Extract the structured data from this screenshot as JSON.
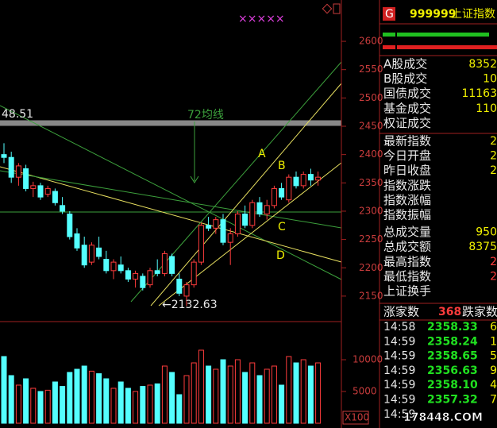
{
  "chart_data": [
    {
      "type": "candlestick",
      "up_color": "#ff3c3c",
      "down_color": "#54ffff",
      "open": [
        2400,
        2395,
        2360,
        2375,
        2340,
        2345,
        2330,
        2335,
        2310,
        2295,
        2260,
        2240,
        2210,
        2235,
        2215,
        2195,
        2205,
        2195,
        2180,
        2185,
        2170,
        2195,
        2190,
        2220,
        2180,
        2150,
        2170,
        2210,
        2275,
        2270,
        2285,
        2245,
        2260,
        2295,
        2275,
        2315,
        2295,
        2310,
        2340,
        2320,
        2360,
        2345,
        2365,
        2355
      ],
      "high": [
        2420,
        2405,
        2385,
        2382,
        2352,
        2350,
        2345,
        2340,
        2325,
        2300,
        2270,
        2255,
        2245,
        2255,
        2230,
        2215,
        2220,
        2200,
        2195,
        2190,
        2200,
        2215,
        2230,
        2225,
        2190,
        2175,
        2215,
        2280,
        2290,
        2290,
        2295,
        2270,
        2300,
        2310,
        2320,
        2325,
        2320,
        2345,
        2350,
        2365,
        2370,
        2370,
        2375,
        2370
      ],
      "low": [
        2385,
        2350,
        2345,
        2335,
        2325,
        2320,
        2325,
        2310,
        2295,
        2250,
        2230,
        2200,
        2205,
        2215,
        2190,
        2180,
        2190,
        2175,
        2165,
        2160,
        2165,
        2185,
        2185,
        2185,
        2150,
        2132.63,
        2165,
        2205,
        2265,
        2260,
        2240,
        2205,
        2255,
        2270,
        2270,
        2290,
        2285,
        2305,
        2320,
        2315,
        2340,
        2340,
        2345,
        2345
      ],
      "close": [
        2395,
        2360,
        2380,
        2340,
        2345,
        2325,
        2340,
        2315,
        2300,
        2255,
        2235,
        2205,
        2240,
        2220,
        2195,
        2210,
        2195,
        2180,
        2190,
        2165,
        2195,
        2190,
        2225,
        2190,
        2155,
        2170,
        2210,
        2275,
        2270,
        2285,
        2245,
        2260,
        2295,
        2275,
        2315,
        2295,
        2310,
        2340,
        2325,
        2360,
        2345,
        2365,
        2355,
        2360
      ],
      "ylim": [
        2112,
        2673
      ],
      "yticks": [
        2150,
        2200,
        2250,
        2300,
        2350,
        2400,
        2450,
        2500,
        2550,
        2600
      ],
      "annotations": [
        "72均线",
        "A",
        "B",
        "C",
        "D",
        "←2132.63",
        "48.51",
        "×××××"
      ]
    },
    {
      "type": "bar",
      "up_color": "#ff3c3c",
      "down_color": "#54ffff",
      "values": [
        10500,
        7500,
        6000,
        7000,
        5500,
        5000,
        5200,
        6500,
        5800,
        8000,
        8500,
        9000,
        8200,
        7800,
        7000,
        5500,
        6500,
        5500,
        5000,
        5800,
        6000,
        6200,
        9000,
        8000,
        4500,
        7500,
        9500,
        11500,
        9000,
        8500,
        10000,
        9000,
        10000,
        8000,
        9500,
        7500,
        8500,
        9000,
        6000,
        10500,
        9500,
        10000,
        9000,
        9500
      ],
      "ylim": [
        0,
        12000
      ],
      "yticks": [
        5000,
        10000
      ],
      "unit_label": "X100"
    }
  ],
  "panel": {
    "header": {
      "flag": "G",
      "code": "999999",
      "name": "上证指数"
    },
    "rows": [
      [
        "A股成交",
        "8352"
      ],
      [
        "B股成交",
        "10"
      ],
      [
        "国债成交",
        "11163"
      ],
      [
        "基金成交",
        "110"
      ],
      [
        "权证成交",
        ""
      ],
      [
        "最新指数",
        "2"
      ],
      [
        "今日开盘",
        "2"
      ],
      [
        "昨日收盘",
        "2"
      ],
      [
        "指数涨跌",
        ""
      ],
      [
        "指数涨幅",
        ""
      ],
      [
        "指数振幅",
        ""
      ],
      [
        "总成交量",
        "950"
      ],
      [
        "总成交额",
        "8375"
      ],
      [
        "最高指数",
        "2"
      ],
      [
        "最低指数",
        "2"
      ],
      [
        "上证换手",
        ""
      ]
    ],
    "breadth": [
      "涨家数",
      "368",
      "跌家数"
    ],
    "ticks": [
      [
        "14:58",
        "2358.33",
        "6"
      ],
      [
        "14:59",
        "2358.24",
        "1"
      ],
      [
        "14:59",
        "2358.65",
        "5"
      ],
      [
        "14:59",
        "2356.63",
        "9"
      ],
      [
        "14:59",
        "2358.10",
        "4"
      ],
      [
        "14:59",
        "2357.32",
        "7"
      ],
      [
        "14:59",
        "",
        ""
      ]
    ],
    "watermark": "178448.COM"
  }
}
